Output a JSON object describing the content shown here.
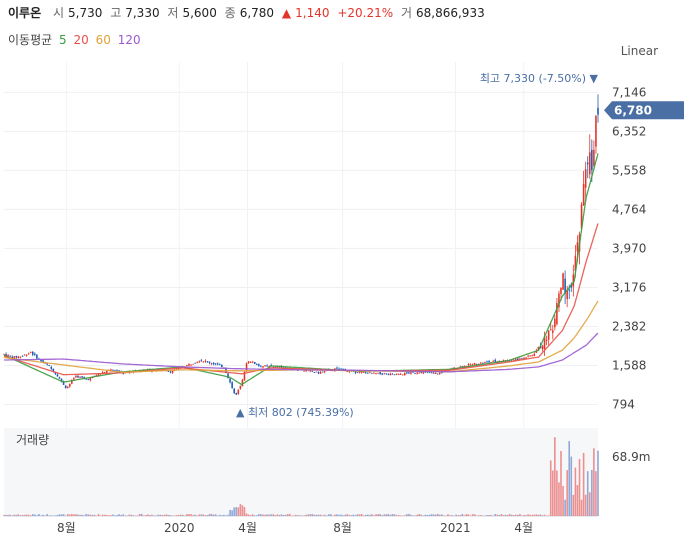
{
  "header": {
    "name": "이루온",
    "open_label": "시",
    "open": "5,730",
    "high_label": "고",
    "high": "7,330",
    "low_label": "저",
    "low": "5,600",
    "close_label": "종",
    "close": "6,780",
    "change_arrow": "▲",
    "change": "1,140",
    "change_pct": "+20.21%",
    "volume_label": "거",
    "volume": "68,866,933"
  },
  "ma_legend": {
    "label": "이동평균",
    "periods": [
      "5",
      "20",
      "60",
      "120"
    ],
    "colors": [
      "#3b9c3b",
      "#e8534a",
      "#e0a23b",
      "#9b59d0"
    ]
  },
  "scale_mode": "Linear",
  "colors": {
    "up": "#e2362b",
    "down": "#1e5bb8",
    "price_tag": "#4a6fa5",
    "volume": "#ec8f8f"
  },
  "chart_data": {
    "type": "candlestick",
    "price_axis": {
      "ticks": [
        794,
        1588,
        2382,
        3176,
        3970,
        4764,
        5558,
        6352,
        7146
      ],
      "tick_labels": [
        "794",
        "1,588",
        "2,382",
        "3,176",
        "3,970",
        "4,764",
        "5,558",
        "6,352",
        "7,146"
      ],
      "ylim": [
        520,
        7600
      ]
    },
    "x_axis": {
      "tick_labels": [
        "8월",
        "2020",
        "4월",
        "8월",
        "2021",
        "4월"
      ]
    },
    "annotations": {
      "high": {
        "prefix": "최고",
        "value": "7,330",
        "pct": "(-7.50%)",
        "marker": "▼"
      },
      "low": {
        "prefix": "최저",
        "value": "802",
        "pct": "(745.39%)",
        "marker": "▲"
      }
    },
    "current_price_tag": "6,780",
    "volume_panel": {
      "title": "거래량",
      "max_label": "68.9m"
    },
    "price_path": [
      [
        0,
        1820
      ],
      [
        0.015,
        1750
      ],
      [
        0.03,
        1780
      ],
      [
        0.045,
        1860
      ],
      [
        0.06,
        1700
      ],
      [
        0.075,
        1580
      ],
      [
        0.09,
        1380
      ],
      [
        0.105,
        1120
      ],
      [
        0.12,
        1380
      ],
      [
        0.14,
        1300
      ],
      [
        0.16,
        1420
      ],
      [
        0.18,
        1500
      ],
      [
        0.2,
        1440
      ],
      [
        0.22,
        1480
      ],
      [
        0.25,
        1500
      ],
      [
        0.28,
        1470
      ],
      [
        0.31,
        1600
      ],
      [
        0.33,
        1700
      ],
      [
        0.35,
        1640
      ],
      [
        0.37,
        1560
      ],
      [
        0.38,
        1260
      ],
      [
        0.39,
        960
      ],
      [
        0.4,
        1250
      ],
      [
        0.41,
        1700
      ],
      [
        0.43,
        1580
      ],
      [
        0.46,
        1560
      ],
      [
        0.5,
        1500
      ],
      [
        0.53,
        1440
      ],
      [
        0.56,
        1520
      ],
      [
        0.59,
        1460
      ],
      [
        0.62,
        1430
      ],
      [
        0.66,
        1400
      ],
      [
        0.7,
        1460
      ],
      [
        0.73,
        1420
      ],
      [
        0.76,
        1540
      ],
      [
        0.79,
        1620
      ],
      [
        0.82,
        1660
      ],
      [
        0.85,
        1700
      ],
      [
        0.87,
        1720
      ],
      [
        0.89,
        1800
      ],
      [
        0.91,
        2100
      ],
      [
        0.925,
        2400
      ],
      [
        0.94,
        3400
      ],
      [
        0.95,
        2900
      ],
      [
        0.96,
        3500
      ],
      [
        0.97,
        4500
      ],
      [
        0.98,
        5600
      ],
      [
        0.99,
        5800
      ],
      [
        1.0,
        6780
      ]
    ],
    "series": [
      {
        "name": "5",
        "values_path": [
          [
            0,
            1800
          ],
          [
            0.1,
            1250
          ],
          [
            0.2,
            1460
          ],
          [
            0.3,
            1560
          ],
          [
            0.38,
            1350
          ],
          [
            0.4,
            1200
          ],
          [
            0.45,
            1580
          ],
          [
            0.6,
            1470
          ],
          [
            0.75,
            1510
          ],
          [
            0.85,
            1690
          ],
          [
            0.9,
            1900
          ],
          [
            0.94,
            3000
          ],
          [
            0.96,
            3300
          ],
          [
            0.98,
            5000
          ],
          [
            1.0,
            5900
          ]
        ]
      },
      {
        "name": "20",
        "values_path": [
          [
            0,
            1780
          ],
          [
            0.1,
            1400
          ],
          [
            0.2,
            1440
          ],
          [
            0.3,
            1540
          ],
          [
            0.4,
            1420
          ],
          [
            0.45,
            1540
          ],
          [
            0.6,
            1480
          ],
          [
            0.75,
            1490
          ],
          [
            0.85,
            1660
          ],
          [
            0.9,
            1760
          ],
          [
            0.94,
            2300
          ],
          [
            0.96,
            2800
          ],
          [
            0.98,
            3700
          ],
          [
            1.0,
            4480
          ]
        ]
      },
      {
        "name": "60",
        "values_path": [
          [
            0,
            1750
          ],
          [
            0.1,
            1600
          ],
          [
            0.2,
            1450
          ],
          [
            0.3,
            1500
          ],
          [
            0.4,
            1480
          ],
          [
            0.5,
            1500
          ],
          [
            0.6,
            1480
          ],
          [
            0.75,
            1460
          ],
          [
            0.85,
            1580
          ],
          [
            0.9,
            1660
          ],
          [
            0.94,
            1900
          ],
          [
            0.96,
            2150
          ],
          [
            0.98,
            2500
          ],
          [
            1.0,
            2900
          ]
        ]
      },
      {
        "name": "120",
        "values_path": [
          [
            0,
            1700
          ],
          [
            0.1,
            1720
          ],
          [
            0.2,
            1620
          ],
          [
            0.3,
            1560
          ],
          [
            0.4,
            1520
          ],
          [
            0.5,
            1500
          ],
          [
            0.6,
            1490
          ],
          [
            0.75,
            1460
          ],
          [
            0.85,
            1510
          ],
          [
            0.9,
            1560
          ],
          [
            0.94,
            1700
          ],
          [
            0.96,
            1850
          ],
          [
            0.98,
            2000
          ],
          [
            1.0,
            2250
          ]
        ]
      }
    ]
  }
}
